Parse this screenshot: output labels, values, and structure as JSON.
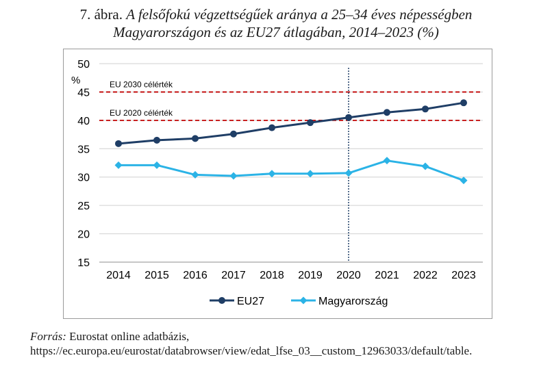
{
  "caption": {
    "lead": "7. ábra.",
    "title_line1": "A felsőfokú végzettségűek aránya a 25–34 éves népességben",
    "title_line2": "Magyarországon és az EU27 átlagában, 2014–2023 (%)"
  },
  "chart_data": {
    "type": "line",
    "categories": [
      "2014",
      "2015",
      "2016",
      "2017",
      "2018",
      "2019",
      "2020",
      "2021",
      "2022",
      "2023"
    ],
    "ylabel": "%",
    "ylim": [
      15,
      50
    ],
    "yticks": [
      "15",
      "20",
      "25",
      "30",
      "35",
      "40",
      "45",
      "50"
    ],
    "grid": true,
    "legend_position": "bottom",
    "series": [
      {
        "name": "EU27",
        "color": "#1f3e66",
        "marker": "circle",
        "values": [
          35.9,
          36.5,
          36.8,
          37.6,
          38.7,
          39.6,
          40.5,
          41.4,
          42.0,
          43.1
        ]
      },
      {
        "name": "Magyarország",
        "color": "#2bb3e6",
        "marker": "diamond",
        "values": [
          32.1,
          32.1,
          30.4,
          30.2,
          30.6,
          30.6,
          30.7,
          32.9,
          31.9,
          29.4
        ]
      }
    ],
    "reference_lines": [
      {
        "label": "EU 2030 célérték",
        "value": 45,
        "color": "#c00000"
      },
      {
        "label": "EU 2020 célérték",
        "value": 40,
        "color": "#c00000"
      }
    ],
    "vertical_marker": {
      "category": "2020",
      "color": "#1f3e66"
    }
  },
  "source": {
    "label": "Forrás:",
    "text": " Eurostat online adatbázis, https://ec.europa.eu/eurostat/databrowser/view/edat_lfse_03__custom_12963033/default/table."
  }
}
